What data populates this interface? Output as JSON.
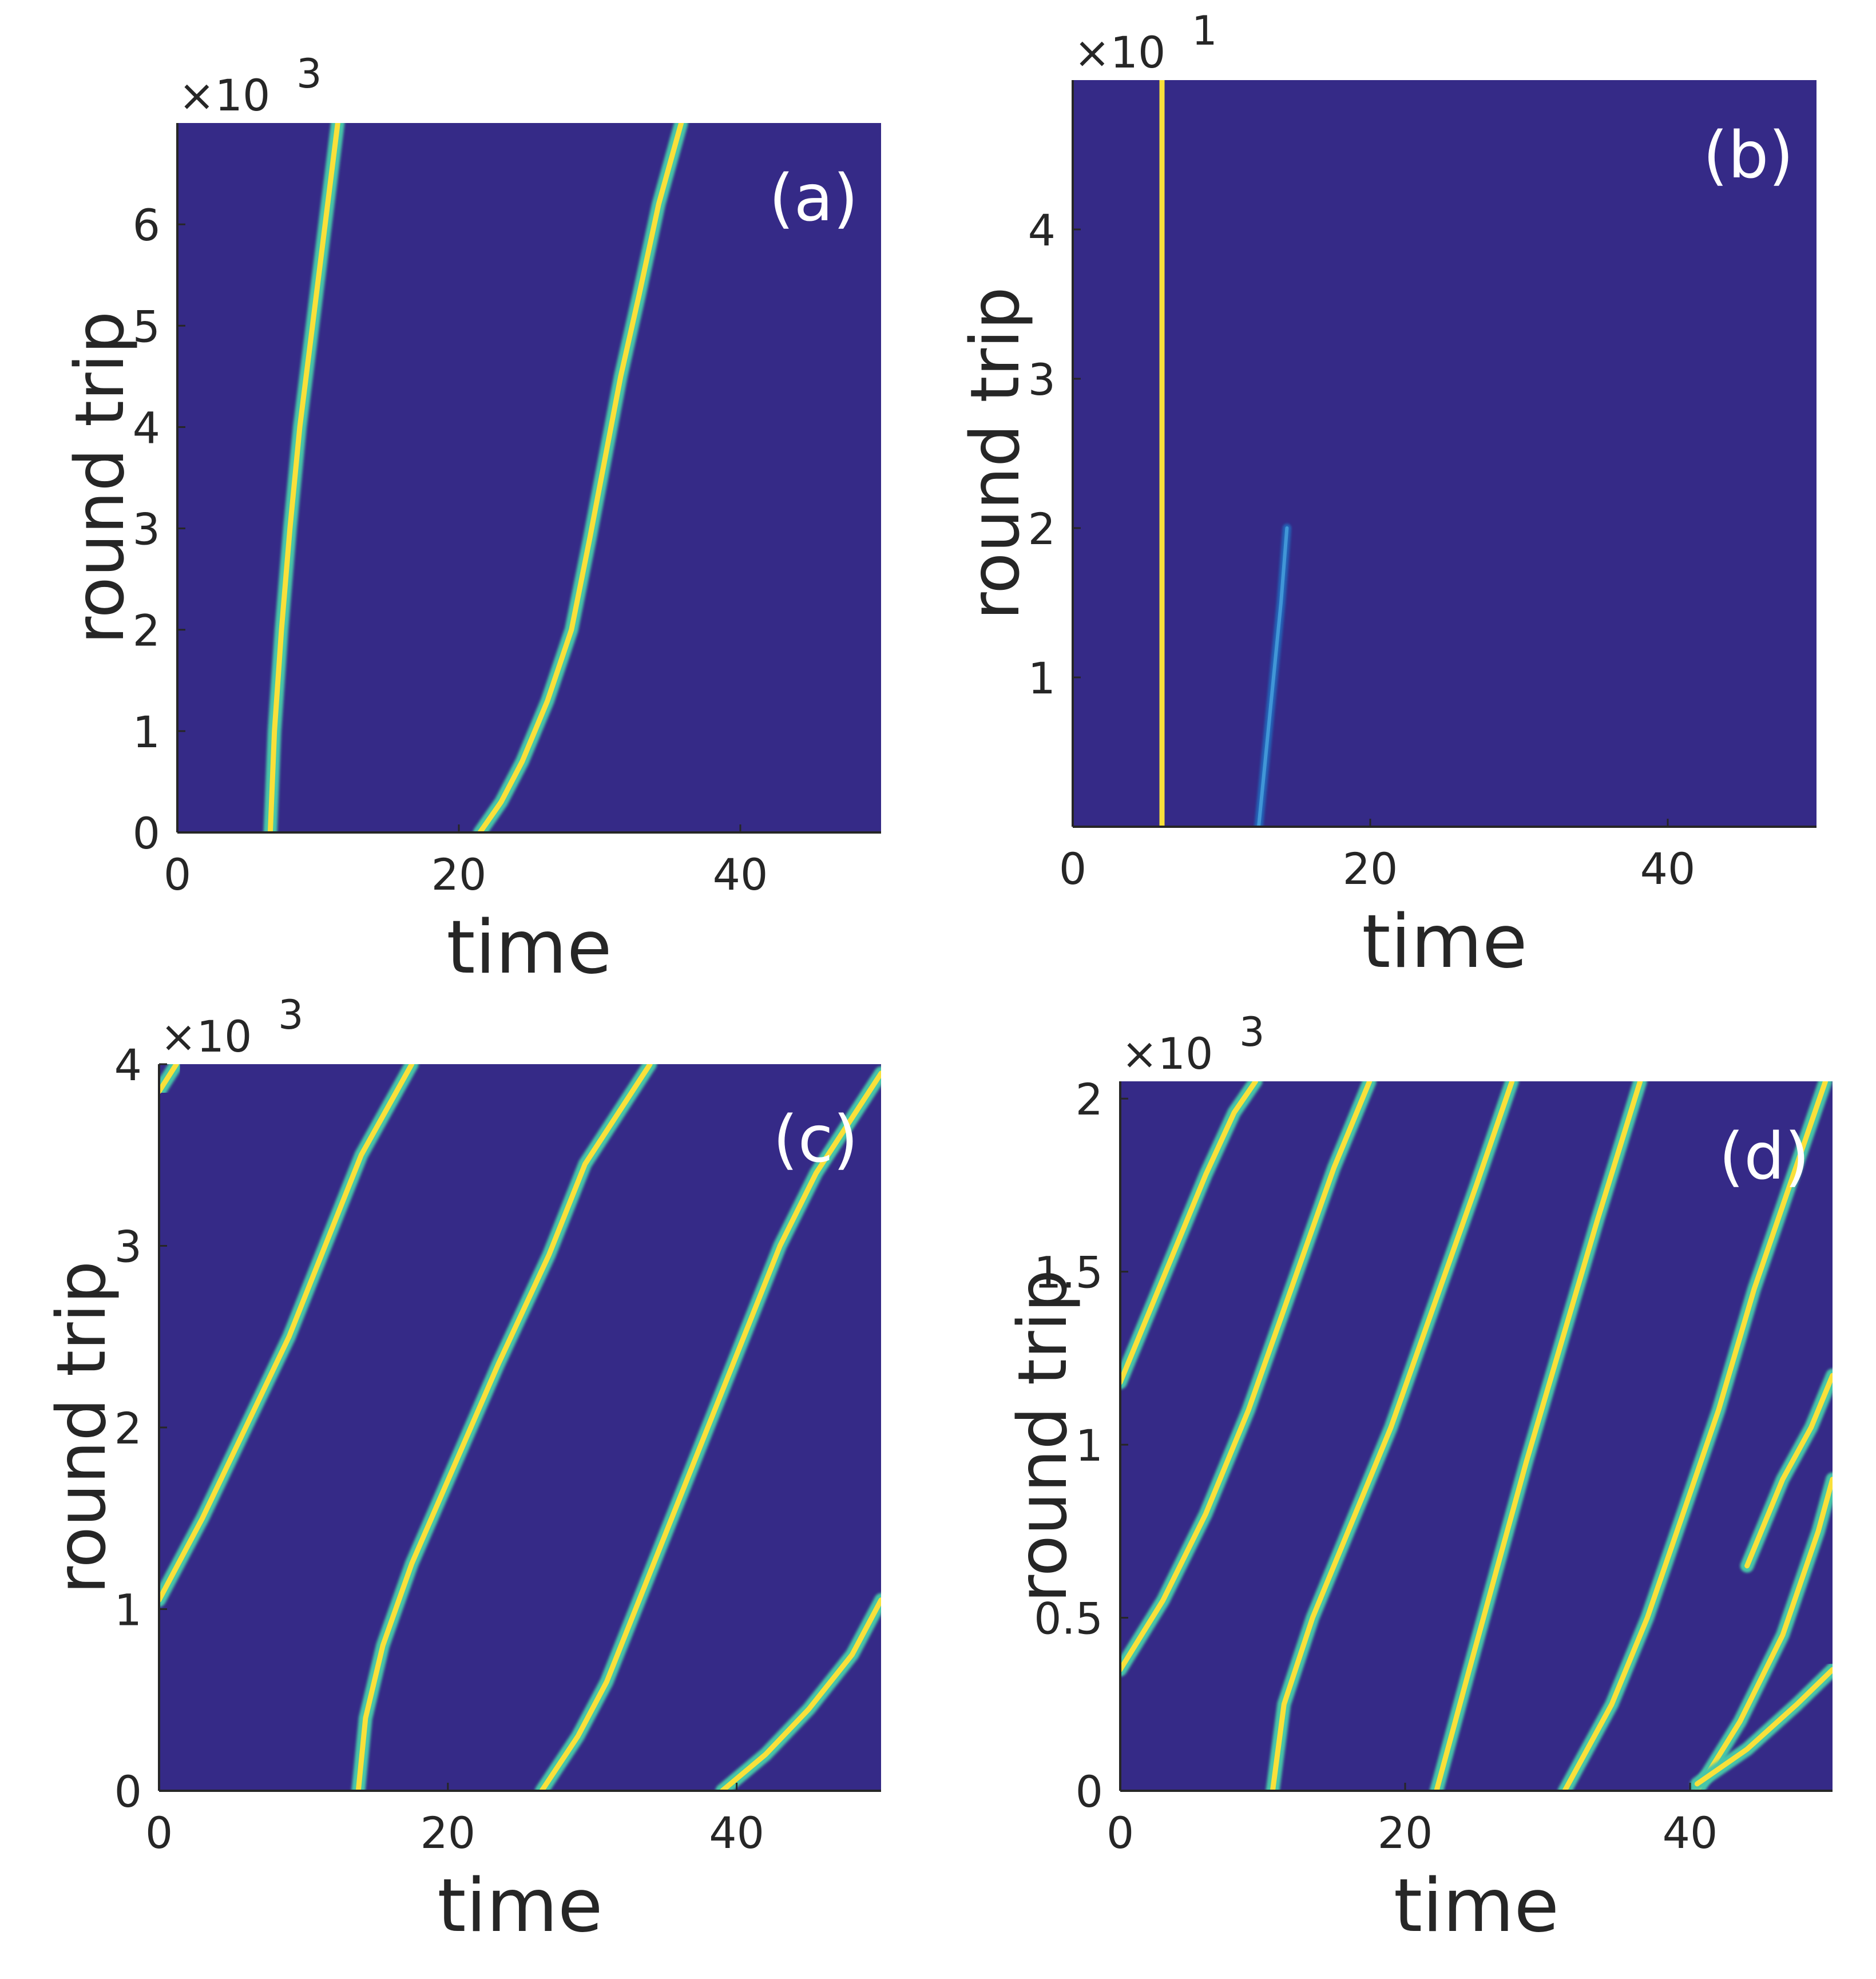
{
  "figure": {
    "background": "#ffffff",
    "heat_background": "#352a87",
    "trace_colors": [
      "#46c6a8",
      "#f9e03a",
      "#1f77c8"
    ]
  },
  "chart_data": [
    {
      "type": "heatmap",
      "panel": "(a)",
      "xlabel": "time",
      "ylabel": "round trip",
      "y_multiplier": "×10",
      "y_exponent": "3",
      "xlim": [
        0,
        50
      ],
      "ylim": [
        0,
        7
      ],
      "xticks": [
        0,
        20,
        40
      ],
      "xtick_labels": [
        "0",
        "20",
        "40"
      ],
      "yticks": [
        0,
        1,
        2,
        3,
        4,
        5,
        6
      ],
      "ytick_labels": [
        "0",
        "1",
        "2",
        "3",
        "4",
        "5",
        "6"
      ],
      "traces": [
        {
          "points": [
            [
              6.6,
              0
            ],
            [
              6.9,
              1
            ],
            [
              7.4,
              2
            ],
            [
              8.0,
              3
            ],
            [
              8.7,
              4
            ],
            [
              9.6,
              5
            ],
            [
              10.5,
              6
            ],
            [
              11.4,
              7
            ]
          ]
        },
        {
          "points": [
            [
              21.5,
              0
            ],
            [
              23.0,
              0.3
            ],
            [
              24.5,
              0.7
            ],
            [
              26.3,
              1.3
            ],
            [
              28.0,
              2.0
            ],
            [
              29.3,
              2.9
            ],
            [
              30.4,
              3.7
            ],
            [
              31.5,
              4.5
            ],
            [
              32.8,
              5.3
            ],
            [
              34.2,
              6.2
            ],
            [
              35.8,
              7
            ]
          ]
        }
      ]
    },
    {
      "type": "heatmap",
      "panel": "(b)",
      "xlabel": "time",
      "ylabel": "round trip",
      "y_multiplier": "×10",
      "y_exponent": "1",
      "xlim": [
        0,
        50
      ],
      "ylim": [
        0,
        50
      ],
      "xticks": [
        0,
        20,
        40
      ],
      "xtick_labels": [
        "0",
        "20",
        "40"
      ],
      "yticks": [
        10,
        20,
        30,
        40
      ],
      "ytick_labels": [
        "1",
        "2",
        "3",
        "4"
      ],
      "traces": [
        {
          "points": [
            [
              6,
              0
            ],
            [
              6,
              50
            ]
          ]
        },
        {
          "faint": true,
          "points": [
            [
              12.5,
              0
            ],
            [
              13.3,
              8
            ],
            [
              14.0,
              15
            ],
            [
              14.4,
              20
            ]
          ]
        }
      ]
    },
    {
      "type": "heatmap",
      "panel": "(c)",
      "xlabel": "time",
      "ylabel": "round trip",
      "y_multiplier": "×10",
      "y_exponent": "3",
      "xlim": [
        0,
        50
      ],
      "ylim": [
        0,
        4
      ],
      "xticks": [
        0,
        20,
        40
      ],
      "xtick_labels": [
        "0",
        "20",
        "40"
      ],
      "yticks": [
        0,
        1,
        2,
        3,
        4
      ],
      "ytick_labels": [
        "0",
        "1",
        "2",
        "3",
        "4"
      ],
      "traces": [
        {
          "points": [
            [
              0,
              1.05
            ],
            [
              3,
              1.5
            ],
            [
              6,
              2.0
            ],
            [
              9,
              2.5
            ],
            [
              11.5,
              3.0
            ],
            [
              14,
              3.5
            ],
            [
              17.5,
              4
            ]
          ]
        },
        {
          "points": [
            [
              0,
              3.85
            ],
            [
              1.2,
              4
            ]
          ]
        },
        {
          "points": [
            [
              13.8,
              0
            ],
            [
              14.3,
              0.4
            ],
            [
              15.5,
              0.8
            ],
            [
              17.5,
              1.25
            ],
            [
              20.5,
              1.8
            ],
            [
              23.5,
              2.35
            ],
            [
              27,
              2.95
            ],
            [
              29.5,
              3.45
            ],
            [
              34,
              4
            ]
          ]
        },
        {
          "points": [
            [
              26.5,
              0
            ],
            [
              29,
              0.3
            ],
            [
              31,
              0.6
            ],
            [
              33,
              1.0
            ],
            [
              35.5,
              1.5
            ],
            [
              38,
              2.0
            ],
            [
              40.5,
              2.5
            ],
            [
              43,
              3.0
            ],
            [
              45.5,
              3.4
            ],
            [
              50,
              3.95
            ]
          ]
        },
        {
          "points": [
            [
              39,
              0
            ],
            [
              42,
              0.2
            ],
            [
              45,
              0.45
            ],
            [
              48,
              0.75
            ],
            [
              50,
              1.05
            ]
          ]
        }
      ]
    },
    {
      "type": "heatmap",
      "panel": "(d)",
      "xlabel": "time",
      "ylabel": "round trip",
      "y_multiplier": "×10",
      "y_exponent": "3",
      "xlim": [
        0,
        50
      ],
      "ylim": [
        0,
        2.05
      ],
      "xticks": [
        0,
        20,
        40
      ],
      "xtick_labels": [
        "0",
        "20",
        "40"
      ],
      "yticks": [
        0,
        0.5,
        1,
        1.5,
        2
      ],
      "ytick_labels": [
        "0",
        "0.5",
        "1",
        "1.5",
        "2"
      ],
      "traces": [
        {
          "points": [
            [
              0,
              1.18
            ],
            [
              2,
              1.38
            ],
            [
              4,
              1.58
            ],
            [
              6,
              1.78
            ],
            [
              8,
              1.96
            ],
            [
              9.5,
              2.05
            ]
          ]
        },
        {
          "points": [
            [
              0,
              0.35
            ],
            [
              3,
              0.55
            ],
            [
              6,
              0.8
            ],
            [
              9,
              1.1
            ],
            [
              12,
              1.45
            ],
            [
              15,
              1.8
            ],
            [
              17.5,
              2.05
            ]
          ]
        },
        {
          "points": [
            [
              10.7,
              0
            ],
            [
              11.5,
              0.25
            ],
            [
              13.5,
              0.5
            ],
            [
              16,
              0.75
            ],
            [
              19,
              1.05
            ],
            [
              22,
              1.4
            ],
            [
              25,
              1.75
            ],
            [
              27.5,
              2.05
            ]
          ]
        },
        {
          "points": [
            [
              22.2,
              0
            ],
            [
              24.5,
              0.35
            ],
            [
              26.5,
              0.65
            ],
            [
              28.5,
              0.95
            ],
            [
              31,
              1.3
            ],
            [
              33.5,
              1.65
            ],
            [
              36.5,
              2.05
            ]
          ]
        },
        {
          "points": [
            [
              31.2,
              0
            ],
            [
              34.5,
              0.25
            ],
            [
              37,
              0.5
            ],
            [
              39.5,
              0.8
            ],
            [
              42,
              1.1
            ],
            [
              44.5,
              1.45
            ],
            [
              47,
              1.75
            ],
            [
              49.5,
              2.05
            ]
          ]
        },
        {
          "points": [
            [
              40.5,
              0
            ],
            [
              43.5,
              0.2
            ],
            [
              46.5,
              0.45
            ],
            [
              49,
              0.75
            ],
            [
              50,
              0.9
            ]
          ]
        },
        {
          "points": [
            [
              40.5,
              0.02
            ],
            [
              44,
              0.12
            ],
            [
              47.5,
              0.25
            ],
            [
              50,
              0.35
            ]
          ]
        },
        {
          "points": [
            [
              44,
              0.65
            ],
            [
              46.5,
              0.9
            ],
            [
              48.5,
              1.05
            ],
            [
              50,
              1.2
            ]
          ]
        }
      ]
    }
  ]
}
